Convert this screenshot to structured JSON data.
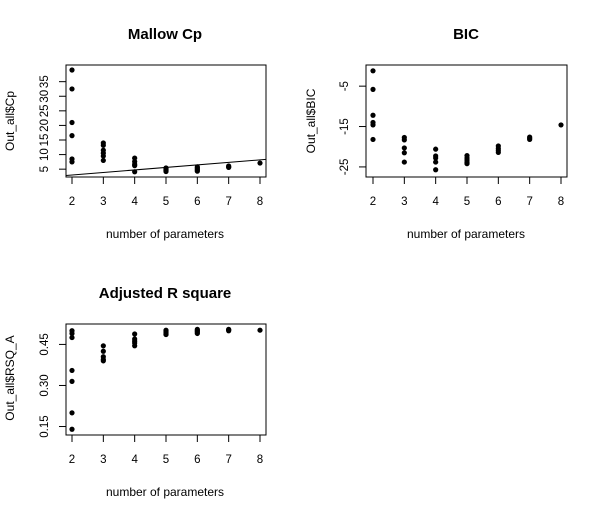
{
  "chart_data": [
    {
      "type": "scatter",
      "title": "Mallow Cp",
      "xlabel": "number of parameters",
      "ylabel": "Out_all$Cp",
      "xlim": [
        2,
        8
      ],
      "ylim": [
        3,
        39
      ],
      "xticks": [
        2,
        3,
        4,
        5,
        6,
        7,
        8
      ],
      "yticks": [
        5,
        10,
        15,
        20,
        25,
        30,
        35
      ],
      "grid": false,
      "reference_line": {
        "x": [
          2,
          8
        ],
        "y": [
          3,
          8.2
        ]
      },
      "points": [
        [
          2,
          39
        ],
        [
          2,
          32.5
        ],
        [
          2,
          21
        ],
        [
          2,
          16.5
        ],
        [
          2,
          8.5
        ],
        [
          2,
          7.5
        ],
        [
          3,
          14
        ],
        [
          3,
          13.2
        ],
        [
          3,
          11.5
        ],
        [
          3,
          10.5
        ],
        [
          3,
          9.5
        ],
        [
          3,
          8
        ],
        [
          4,
          8.8
        ],
        [
          4,
          7.6
        ],
        [
          4,
          6.7
        ],
        [
          4,
          6.2
        ],
        [
          4,
          4.1
        ],
        [
          5,
          5.4
        ],
        [
          5,
          5.1
        ],
        [
          5,
          4.8
        ],
        [
          5,
          4.5
        ],
        [
          5,
          4.2
        ],
        [
          6,
          5.8
        ],
        [
          6,
          5.4
        ],
        [
          6,
          5
        ],
        [
          6,
          4.6
        ],
        [
          6,
          4.3
        ],
        [
          7,
          6.1
        ],
        [
          7,
          5.8
        ],
        [
          7,
          5.6
        ],
        [
          8,
          7.1
        ]
      ]
    },
    {
      "type": "scatter",
      "title": "BIC",
      "xlabel": "number of parameters",
      "ylabel": "Out_all$BIC",
      "xlim": [
        2,
        8
      ],
      "ylim": [
        -27,
        -1
      ],
      "xticks": [
        2,
        3,
        4,
        5,
        6,
        7,
        8
      ],
      "yticks": [
        -25,
        -15,
        -5
      ],
      "grid": false,
      "points": [
        [
          2,
          -1.2
        ],
        [
          2,
          -5.8
        ],
        [
          2,
          -12.2
        ],
        [
          2,
          -14
        ],
        [
          2,
          -14.6
        ],
        [
          2,
          -18.2
        ],
        [
          3,
          -17.7
        ],
        [
          3,
          -18.3
        ],
        [
          3,
          -20.3
        ],
        [
          3,
          -21.5
        ],
        [
          3,
          -23.8
        ],
        [
          4,
          -20.6
        ],
        [
          4,
          -22.3
        ],
        [
          4,
          -22.8
        ],
        [
          4,
          -23.8
        ],
        [
          4,
          -25.7
        ],
        [
          5,
          -22.2
        ],
        [
          5,
          -22.8
        ],
        [
          5,
          -23.3
        ],
        [
          5,
          -23.8
        ],
        [
          5,
          -24.2
        ],
        [
          6,
          -19.8
        ],
        [
          6,
          -20.4
        ],
        [
          6,
          -20.9
        ],
        [
          6,
          -21.4
        ],
        [
          7,
          -17.6
        ],
        [
          7,
          -17.9
        ],
        [
          7,
          -18.2
        ],
        [
          8,
          -14.6
        ]
      ]
    },
    {
      "type": "scatter",
      "title": "Adjusted R square",
      "xlabel": "number of parameters",
      "ylabel": "Out_all$RSQ_A",
      "xlim": [
        2,
        8
      ],
      "ylim": [
        0.13,
        0.51
      ],
      "xticks": [
        2,
        3,
        4,
        5,
        6,
        7,
        8
      ],
      "yticks": [
        0.15,
        0.3,
        0.45
      ],
      "ytick_labels": [
        "0.15",
        "0.30",
        "0.45"
      ],
      "grid": false,
      "points": [
        [
          2,
          0.5
        ],
        [
          2,
          0.49
        ],
        [
          2,
          0.475
        ],
        [
          2,
          0.355
        ],
        [
          2,
          0.315
        ],
        [
          2,
          0.2
        ],
        [
          2,
          0.14
        ],
        [
          3,
          0.445
        ],
        [
          3,
          0.425
        ],
        [
          3,
          0.405
        ],
        [
          3,
          0.395
        ],
        [
          3,
          0.39
        ],
        [
          4,
          0.488
        ],
        [
          4,
          0.47
        ],
        [
          4,
          0.462
        ],
        [
          4,
          0.455
        ],
        [
          4,
          0.445
        ],
        [
          5,
          0.502
        ],
        [
          5,
          0.497
        ],
        [
          5,
          0.494
        ],
        [
          5,
          0.49
        ],
        [
          5,
          0.486
        ],
        [
          6,
          0.505
        ],
        [
          6,
          0.501
        ],
        [
          6,
          0.498
        ],
        [
          6,
          0.494
        ],
        [
          6,
          0.49
        ],
        [
          7,
          0.505
        ],
        [
          7,
          0.503
        ],
        [
          7,
          0.5
        ],
        [
          8,
          0.502
        ]
      ]
    }
  ]
}
